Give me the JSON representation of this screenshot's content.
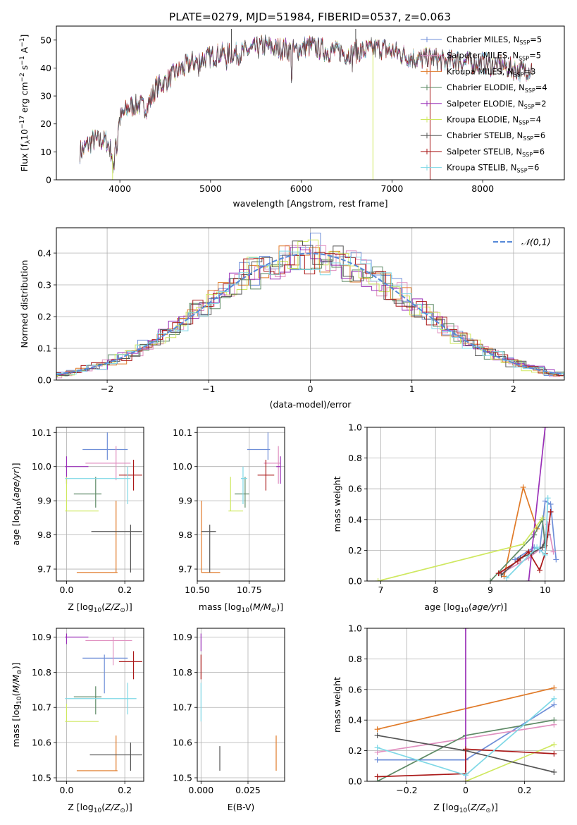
{
  "title": "PLATE=0279, MJD=51984, FIBERID=0537, z=0.063",
  "colors": {
    "chabrier_miles": "#6f8fd8",
    "salpeter_miles": "#e090c0",
    "kroupa_miles": "#e07a28",
    "chabrier_elodie": "#5e8a66",
    "salpeter_elodie": "#9a30b8",
    "kroupa_elodie": "#cfe860",
    "chabrier_stelib": "#555555",
    "salpeter_stelib": "#aa1818",
    "kroupa_stelib": "#7fd8e6",
    "normal": "#5588d8"
  },
  "legend_spectrum": [
    {
      "key": "chabrier_miles",
      "label": "Chabrier MILES, N",
      "sub": "SSP",
      "suffix": "=5"
    },
    {
      "key": "salpeter_miles",
      "label": "Salpeter MILES, N",
      "sub": "SSP",
      "suffix": "=5"
    },
    {
      "key": "kroupa_miles",
      "label": "Kroupa MILES, N",
      "sub": "SSP",
      "suffix": "=3"
    },
    {
      "key": "chabrier_elodie",
      "label": "Chabrier ELODIE, N",
      "sub": "SSP",
      "suffix": "=4"
    },
    {
      "key": "salpeter_elodie",
      "label": "Salpeter ELODIE, N",
      "sub": "SSP",
      "suffix": "=2"
    },
    {
      "key": "kroupa_elodie",
      "label": "Kroupa ELODIE, N",
      "sub": "SSP",
      "suffix": "=4"
    },
    {
      "key": "chabrier_stelib",
      "label": "Chabrier STELIB, N",
      "sub": "SSP",
      "suffix": "=6"
    },
    {
      "key": "salpeter_stelib",
      "label": "Salpeter STELIB, N",
      "sub": "SSP",
      "suffix": "=6"
    },
    {
      "key": "kroupa_stelib",
      "label": "Kroupa STELIB, N",
      "sub": "SSP",
      "suffix": "=6"
    }
  ],
  "chart_data": [
    {
      "id": "spectrum",
      "type": "line",
      "title": "PLATE=0279, MJD=51984, FIBERID=0537, z=0.063",
      "xlabel": "wavelength [Angstrom, rest frame]",
      "ylabel": "Flux [f_λ 10^-17 erg cm^-2 s^-1 A^-1]",
      "xlim": [
        3300,
        8900
      ],
      "ylim": [
        0,
        55
      ],
      "xticks": [
        4000,
        5000,
        6000,
        7000,
        8000
      ],
      "yticks": [
        0,
        10,
        20,
        30,
        40,
        50
      ],
      "continuum_x": [
        3560,
        3700,
        3850,
        3920,
        4000,
        4100,
        4200,
        4300,
        4400,
        4500,
        4600,
        4700,
        4800,
        4900,
        5000,
        5100,
        5200,
        5300,
        5400,
        5500,
        5600,
        5700,
        5800,
        5900,
        6000,
        6100,
        6200,
        6300,
        6400,
        6500,
        6600,
        6700,
        6800,
        6900,
        7000,
        7100,
        7200,
        7300,
        7400,
        7500,
        7600,
        7700,
        7800,
        7900,
        8000,
        8100,
        8200,
        8300,
        8400,
        8550
      ],
      "continuum_y": [
        10,
        14,
        14,
        9,
        22,
        26,
        27,
        26,
        33,
        35,
        38,
        40,
        42,
        43,
        44,
        45,
        45,
        45,
        46,
        47,
        48,
        47,
        47,
        46,
        47,
        48,
        47,
        46,
        46,
        45,
        46,
        46,
        47,
        47,
        46,
        45,
        44,
        43,
        44,
        43,
        42,
        43,
        42,
        42,
        42,
        41,
        41,
        40,
        39,
        40
      ]
    },
    {
      "id": "residuals",
      "type": "histogram",
      "xlabel": "(data-model)/error",
      "ylabel": "Normed distribution",
      "xlim": [
        -2.5,
        2.5
      ],
      "ylim": [
        0,
        0.48
      ],
      "xticks": [
        -2,
        -1,
        0,
        1,
        2
      ],
      "yticks": [
        0.0,
        0.1,
        0.2,
        0.3,
        0.4
      ],
      "bin_width": 0.1,
      "reference": {
        "label": "𝒩(0,1)",
        "mean": 0,
        "sigma": 1
      }
    },
    {
      "id": "age_vs_Z",
      "type": "scatter",
      "xlabel": "Z [log10(Z/Z⊙)]",
      "ylabel": "age  [log10(age/yr)]",
      "xlim": [
        -0.035,
        0.265
      ],
      "ylim": [
        9.665,
        10.115
      ],
      "xticks": [
        0.0,
        0.2
      ],
      "yticks": [
        9.7,
        9.8,
        9.9,
        10.0,
        10.1
      ],
      "points": [
        {
          "key": "chabrier_miles",
          "x": 0.14,
          "xl": 0.055,
          "xh": 0.21,
          "y": 10.05,
          "yl": 10.02,
          "yh": 10.1
        },
        {
          "key": "salpeter_miles",
          "x": 0.17,
          "xl": 0.065,
          "xh": 0.22,
          "y": 10.01,
          "yl": 9.96,
          "yh": 10.06
        },
        {
          "key": "kroupa_miles",
          "x": 0.17,
          "xl": 0.035,
          "xh": 0.175,
          "y": 9.69,
          "yl": 9.69,
          "yh": 9.9
        },
        {
          "key": "chabrier_elodie",
          "x": 0.1,
          "xl": 0.025,
          "xh": 0.12,
          "y": 9.92,
          "yl": 9.88,
          "yh": 9.97
        },
        {
          "key": "salpeter_elodie",
          "x": 0.0,
          "xl": -0.005,
          "xh": 0.075,
          "y": 10.0,
          "yl": 9.95,
          "yh": 10.03
        },
        {
          "key": "kroupa_elodie",
          "x": 0.0,
          "xl": -0.005,
          "xh": 0.11,
          "y": 9.87,
          "yl": 9.87,
          "yh": 9.97
        },
        {
          "key": "chabrier_stelib",
          "x": 0.22,
          "xl": 0.085,
          "xh": 0.26,
          "y": 9.81,
          "yl": 9.69,
          "yh": 9.83
        },
        {
          "key": "salpeter_stelib",
          "x": 0.23,
          "xl": 0.18,
          "xh": 0.26,
          "y": 9.975,
          "yl": 9.93,
          "yh": 10.02
        },
        {
          "key": "kroupa_stelib",
          "x": 0.21,
          "xl": -0.005,
          "xh": 0.22,
          "y": 9.965,
          "yl": 9.89,
          "yh": 10.0
        }
      ]
    },
    {
      "id": "age_vs_mass",
      "type": "scatter",
      "xlabel": "mass [log10(M/M⊙)]",
      "ylabel": "",
      "xlim": [
        10.5,
        10.92
      ],
      "ylim": [
        9.665,
        10.115
      ],
      "xticks": [
        10.5,
        10.75
      ],
      "yticks": [
        9.7,
        9.8,
        9.9,
        10.0,
        10.1
      ],
      "points": [
        {
          "key": "chabrier_miles",
          "x": 10.84,
          "xl": 10.74,
          "xh": 10.85,
          "y": 10.05,
          "yl": 10.02,
          "yh": 10.1
        },
        {
          "key": "salpeter_miles",
          "x": 10.89,
          "xl": 10.82,
          "xh": 10.9,
          "y": 10.01,
          "yl": 9.95,
          "yh": 10.06
        },
        {
          "key": "kroupa_miles",
          "x": 10.52,
          "xl": 10.52,
          "xh": 10.61,
          "y": 9.69,
          "yl": 9.69,
          "yh": 9.9
        },
        {
          "key": "chabrier_elodie",
          "x": 10.73,
          "xl": 10.68,
          "xh": 10.75,
          "y": 9.92,
          "yl": 9.88,
          "yh": 9.97
        },
        {
          "key": "salpeter_elodie",
          "x": 10.9,
          "xl": 10.88,
          "xh": 10.9,
          "y": 10.0,
          "yl": 9.95,
          "yh": 10.03
        },
        {
          "key": "kroupa_elodie",
          "x": 10.66,
          "xl": 10.65,
          "xh": 10.72,
          "y": 9.87,
          "yl": 9.87,
          "yh": 9.97
        },
        {
          "key": "chabrier_stelib",
          "x": 10.56,
          "xl": 10.52,
          "xh": 10.59,
          "y": 9.81,
          "yl": 9.69,
          "yh": 9.83
        },
        {
          "key": "salpeter_stelib",
          "x": 10.83,
          "xl": 10.79,
          "xh": 10.87,
          "y": 9.975,
          "yl": 9.93,
          "yh": 10.02
        },
        {
          "key": "kroupa_stelib",
          "x": 10.72,
          "xl": 10.71,
          "xh": 10.74,
          "y": 9.965,
          "yl": 9.89,
          "yh": 10.0
        }
      ]
    },
    {
      "id": "weight_vs_age",
      "type": "line",
      "xlabel": "age  [log10(age/yr)]",
      "ylabel": "mass weight",
      "xlim": [
        6.75,
        10.35
      ],
      "ylim": [
        0,
        1.0
      ],
      "xticks": [
        7,
        8,
        9,
        10
      ],
      "yticks": [
        0.0,
        0.2,
        0.4,
        0.6,
        0.8,
        1.0
      ],
      "series": [
        {
          "key": "chabrier_miles",
          "x": [
            9.45,
            9.8,
            9.9,
            10.0,
            10.1,
            10.2
          ],
          "y": [
            0.14,
            0.22,
            0.2,
            0.52,
            0.5,
            0.14
          ]
        },
        {
          "key": "salpeter_miles",
          "x": [
            9.25,
            9.7,
            9.95,
            10.05,
            10.15
          ],
          "y": [
            0.06,
            0.15,
            0.22,
            0.37,
            0.19
          ]
        },
        {
          "key": "kroupa_miles",
          "x": [
            9.25,
            9.6,
            9.85
          ],
          "y": [
            0.03,
            0.61,
            0.34
          ]
        },
        {
          "key": "chabrier_elodie",
          "x": [
            9.0,
            9.8,
            9.95,
            10.0
          ],
          "y": [
            0.0,
            0.3,
            0.4,
            0.23
          ]
        },
        {
          "key": "salpeter_elodie",
          "x": [
            9.7,
            10.0
          ],
          "y": [
            0.0,
            1.0
          ]
        },
        {
          "key": "kroupa_elodie",
          "x": [
            6.95,
            9.6,
            9.95
          ],
          "y": [
            0.0,
            0.24,
            0.41
          ]
        },
        {
          "key": "chabrier_stelib",
          "x": [
            9.2,
            9.55,
            9.75,
            9.95,
            10.05
          ],
          "y": [
            0.04,
            0.15,
            0.18,
            0.22,
            0.3
          ]
        },
        {
          "key": "salpeter_stelib",
          "x": [
            9.15,
            9.5,
            9.7,
            9.9,
            10.0,
            10.1
          ],
          "y": [
            0.05,
            0.13,
            0.19,
            0.07,
            0.18,
            0.45
          ]
        },
        {
          "key": "kroupa_stelib",
          "x": [
            9.3,
            9.85,
            10.0,
            10.05
          ],
          "y": [
            0.02,
            0.22,
            0.17,
            0.54
          ]
        }
      ]
    },
    {
      "id": "mass_vs_Z",
      "type": "scatter",
      "xlabel": "Z [log10(Z/Z⊙)]",
      "ylabel": "mass [log10(M/M⊙)]",
      "xlim": [
        -0.035,
        0.265
      ],
      "ylim": [
        10.49,
        10.925
      ],
      "xticks": [
        0.0,
        0.2
      ],
      "yticks": [
        10.5,
        10.6,
        10.7,
        10.8,
        10.9
      ],
      "points": [
        {
          "key": "chabrier_miles",
          "x": 0.13,
          "xl": 0.055,
          "xh": 0.21,
          "y": 10.84,
          "yl": 10.74,
          "yh": 10.85
        },
        {
          "key": "salpeter_miles",
          "x": 0.16,
          "xl": 0.065,
          "xh": 0.225,
          "y": 10.89,
          "yl": 10.82,
          "yh": 10.9
        },
        {
          "key": "kroupa_miles",
          "x": 0.17,
          "xl": 0.035,
          "xh": 0.175,
          "y": 10.52,
          "yl": 10.52,
          "yh": 10.62
        },
        {
          "key": "chabrier_elodie",
          "x": 0.1,
          "xl": 0.025,
          "xh": 0.12,
          "y": 10.73,
          "yl": 10.68,
          "yh": 10.76
        },
        {
          "key": "salpeter_elodie",
          "x": 0.0,
          "xl": -0.005,
          "xh": 0.075,
          "y": 10.9,
          "yl": 10.88,
          "yh": 10.91
        },
        {
          "key": "kroupa_elodie",
          "x": 0.0,
          "xl": -0.005,
          "xh": 0.11,
          "y": 10.66,
          "yl": 10.66,
          "yh": 10.71
        },
        {
          "key": "chabrier_stelib",
          "x": 0.22,
          "xl": 0.08,
          "xh": 0.26,
          "y": 10.565,
          "yl": 10.52,
          "yh": 10.6
        },
        {
          "key": "salpeter_stelib",
          "x": 0.23,
          "xl": 0.18,
          "xh": 0.26,
          "y": 10.83,
          "yl": 10.78,
          "yh": 10.86
        },
        {
          "key": "kroupa_stelib",
          "x": 0.21,
          "xl": -0.005,
          "xh": 0.24,
          "y": 10.725,
          "yl": 10.68,
          "yh": 10.77
        }
      ]
    },
    {
      "id": "mass_vs_ebv",
      "type": "scatter",
      "xlabel": "E(B-V)",
      "ylabel": "",
      "xlim": [
        -0.002,
        0.0445
      ],
      "ylim": [
        10.49,
        10.925
      ],
      "xticks": [
        0.0,
        0.025
      ],
      "yticks": [
        10.5,
        10.6,
        10.7,
        10.8,
        10.9
      ],
      "points": [
        {
          "key": "salpeter_elodie",
          "x": 0.0,
          "y": 10.885,
          "yl": 10.86,
          "yh": 10.91
        },
        {
          "key": "salpeter_stelib",
          "x": 0.0,
          "y": 10.815,
          "yl": 10.78,
          "yh": 10.85
        },
        {
          "key": "kroupa_stelib",
          "x": 0.0,
          "y": 10.72,
          "yl": 10.66,
          "yh": 10.77
        },
        {
          "key": "chabrier_stelib",
          "x": 0.01,
          "y": 10.555,
          "yl": 10.52,
          "yh": 10.59
        },
        {
          "key": "kroupa_miles",
          "x": 0.04,
          "y": 10.565,
          "yl": 10.52,
          "yh": 10.62
        }
      ]
    },
    {
      "id": "weight_vs_Z",
      "type": "line",
      "xlabel": "Z [log10(Z/Z⊙)]",
      "ylabel": "mass weight",
      "xlim": [
        -0.335,
        0.335
      ],
      "ylim": [
        0,
        1.0
      ],
      "xticks": [
        -0.2,
        0.0,
        0.2
      ],
      "yticks": [
        0.0,
        0.2,
        0.4,
        0.6,
        0.8,
        1.0
      ],
      "series": [
        {
          "key": "chabrier_miles",
          "x": [
            -0.3,
            0.0,
            0.3
          ],
          "y": [
            0.14,
            0.14,
            0.5
          ]
        },
        {
          "key": "salpeter_miles",
          "x": [
            -0.3,
            0.3
          ],
          "y": [
            0.19,
            0.37
          ]
        },
        {
          "key": "kroupa_miles",
          "x": [
            -0.3,
            0.3
          ],
          "y": [
            0.34,
            0.61
          ]
        },
        {
          "key": "chabrier_elodie",
          "x": [
            -0.3,
            0.0,
            0.3
          ],
          "y": [
            0.0,
            0.3,
            0.4
          ]
        },
        {
          "key": "salpeter_elodie",
          "x": [
            0.0,
            0.0
          ],
          "y": [
            0.0,
            1.0
          ]
        },
        {
          "key": "kroupa_elodie",
          "x": [
            0.0,
            0.3
          ],
          "y": [
            0.0,
            0.24
          ]
        },
        {
          "key": "chabrier_stelib",
          "x": [
            -0.3,
            0.0,
            0.3
          ],
          "y": [
            0.3,
            0.2,
            0.06
          ]
        },
        {
          "key": "salpeter_stelib",
          "x": [
            -0.3,
            0.0,
            0.0,
            0.3
          ],
          "y": [
            0.03,
            0.05,
            0.21,
            0.18
          ]
        },
        {
          "key": "kroupa_stelib",
          "x": [
            -0.3,
            0.0,
            0.3
          ],
          "y": [
            0.22,
            0.04,
            0.54
          ]
        }
      ]
    }
  ]
}
